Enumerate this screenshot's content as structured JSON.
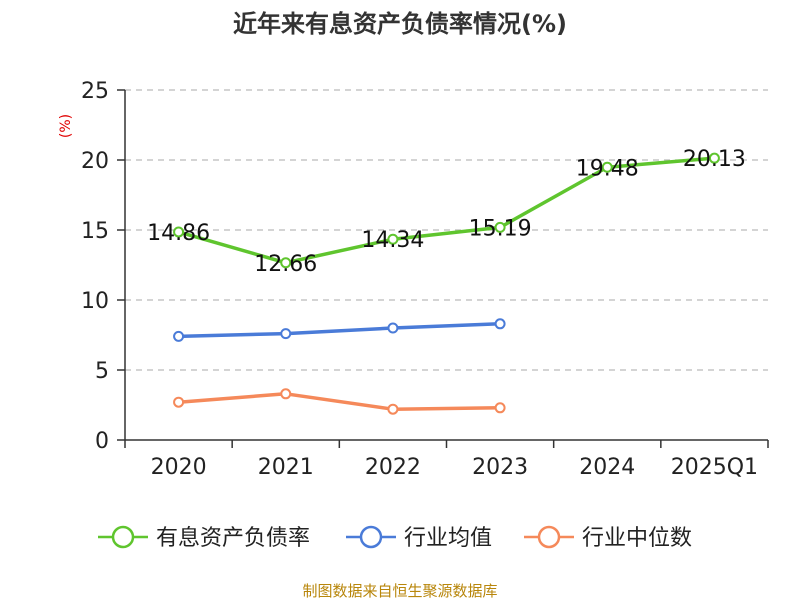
{
  "chart_data": {
    "type": "line",
    "title": "近年来有息资产负债率情况(%)",
    "ylabel": "(%)",
    "ylim": [
      0,
      25
    ],
    "yticks": [
      0,
      5,
      10,
      15,
      20,
      25
    ],
    "grid": true,
    "legend_position": "bottom",
    "categories": [
      "2020",
      "2021",
      "2022",
      "2023",
      "2024",
      "2025Q1"
    ],
    "series": [
      {
        "name": "有息资产负债率",
        "color": "#5fc52e",
        "values": [
          14.86,
          12.66,
          14.34,
          15.19,
          19.48,
          20.13
        ],
        "labels": [
          "14.86",
          "12.66",
          "14.34",
          "15.19",
          "19.48",
          "20.13"
        ]
      },
      {
        "name": "行业均值",
        "color": "#4a7bd8",
        "values": [
          7.4,
          7.6,
          8.0,
          8.3,
          null,
          null
        ]
      },
      {
        "name": "行业中位数",
        "color": "#f5895a",
        "values": [
          2.7,
          3.3,
          2.2,
          2.3,
          null,
          null
        ]
      }
    ],
    "source": "制图数据来自恒生聚源数据库"
  }
}
